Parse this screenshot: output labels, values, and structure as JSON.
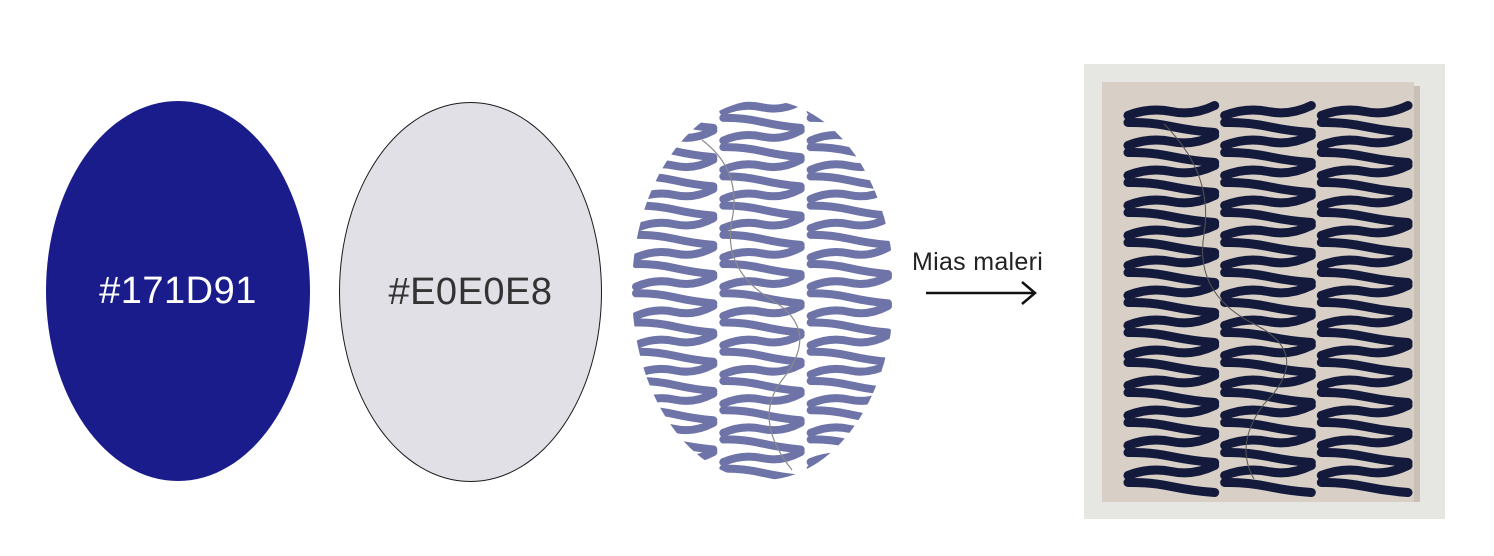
{
  "swatches": [
    {
      "hex_label": "#171D91",
      "fill": "#1A1C8C",
      "text_color": "#FFFFFF"
    },
    {
      "hex_label": "#E0E0E8",
      "fill": "#E0E0E6",
      "text_color": "#333333"
    }
  ],
  "pattern_colors": {
    "oval_leaf": "#6E74A8",
    "oval_bg": "#FFFFFF",
    "photo_leaf": "#141A3C",
    "canvas": "#D8CFC6",
    "wall": "#E6E6E2"
  },
  "caption": "Mias maleri"
}
